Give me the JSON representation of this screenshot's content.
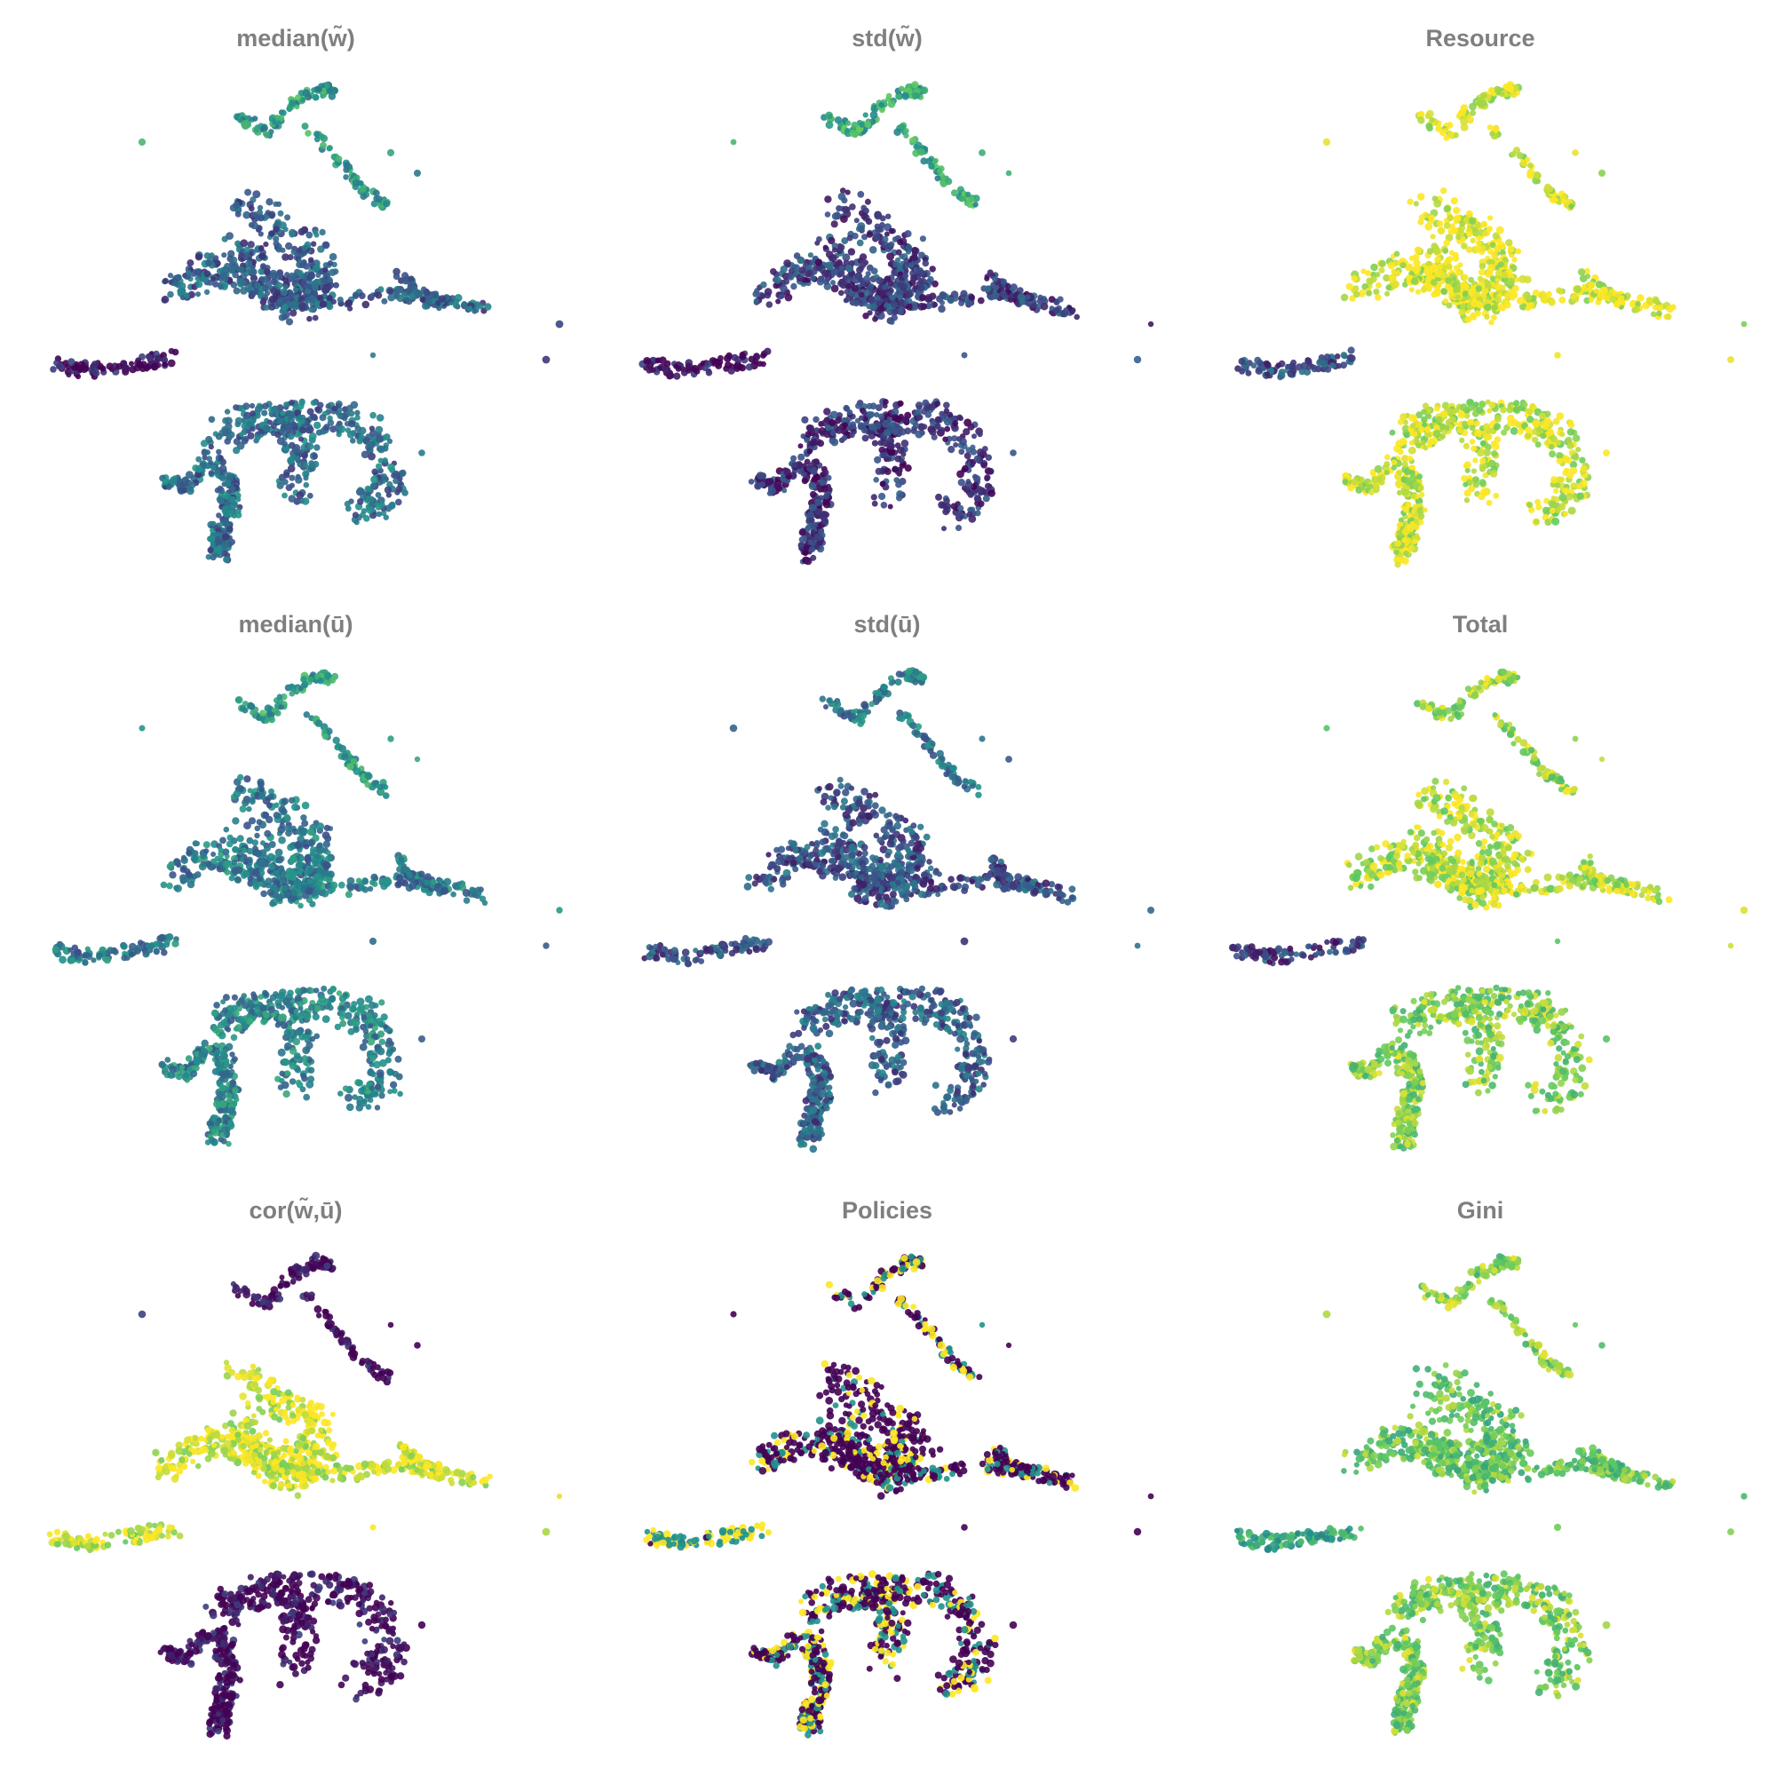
{
  "figure": {
    "colormap": "viridis",
    "colormap_stops": [
      "#440154",
      "#3b528b",
      "#21918c",
      "#5ec962",
      "#fde725"
    ],
    "background": "#ffffff",
    "title_color": "#7f7f7f"
  },
  "chart_data": [
    {
      "type": "scatter",
      "title": "median(w̃)",
      "color_profile": [
        0.55,
        0.3,
        0.05,
        0.35
      ]
    },
    {
      "type": "scatter",
      "title": "std(w̃)",
      "color_profile": [
        0.6,
        0.2,
        0.03,
        0.15
      ]
    },
    {
      "type": "scatter",
      "title": "Resource",
      "color_profile": [
        0.95,
        0.97,
        0.25,
        0.93
      ]
    },
    {
      "type": "scatter",
      "title": "median(ū)",
      "color_profile": [
        0.55,
        0.4,
        0.4,
        0.45
      ]
    },
    {
      "type": "scatter",
      "title": "std(ū)",
      "color_profile": [
        0.4,
        0.25,
        0.25,
        0.3
      ]
    },
    {
      "type": "scatter",
      "title": "Total",
      "color_profile": [
        0.85,
        0.9,
        0.2,
        0.8
      ]
    },
    {
      "type": "scatter",
      "title": "cor(w̃,ū)",
      "color_profile": [
        0.02,
        0.95,
        0.93,
        0.02
      ]
    },
    {
      "type": "scatter",
      "title": "Policies",
      "color_profile": [
        0.5,
        0.3,
        0.98,
        0.45
      ]
    },
    {
      "type": "scatter",
      "title": "Gini",
      "color_profile": [
        0.8,
        0.75,
        0.6,
        0.8
      ]
    }
  ]
}
